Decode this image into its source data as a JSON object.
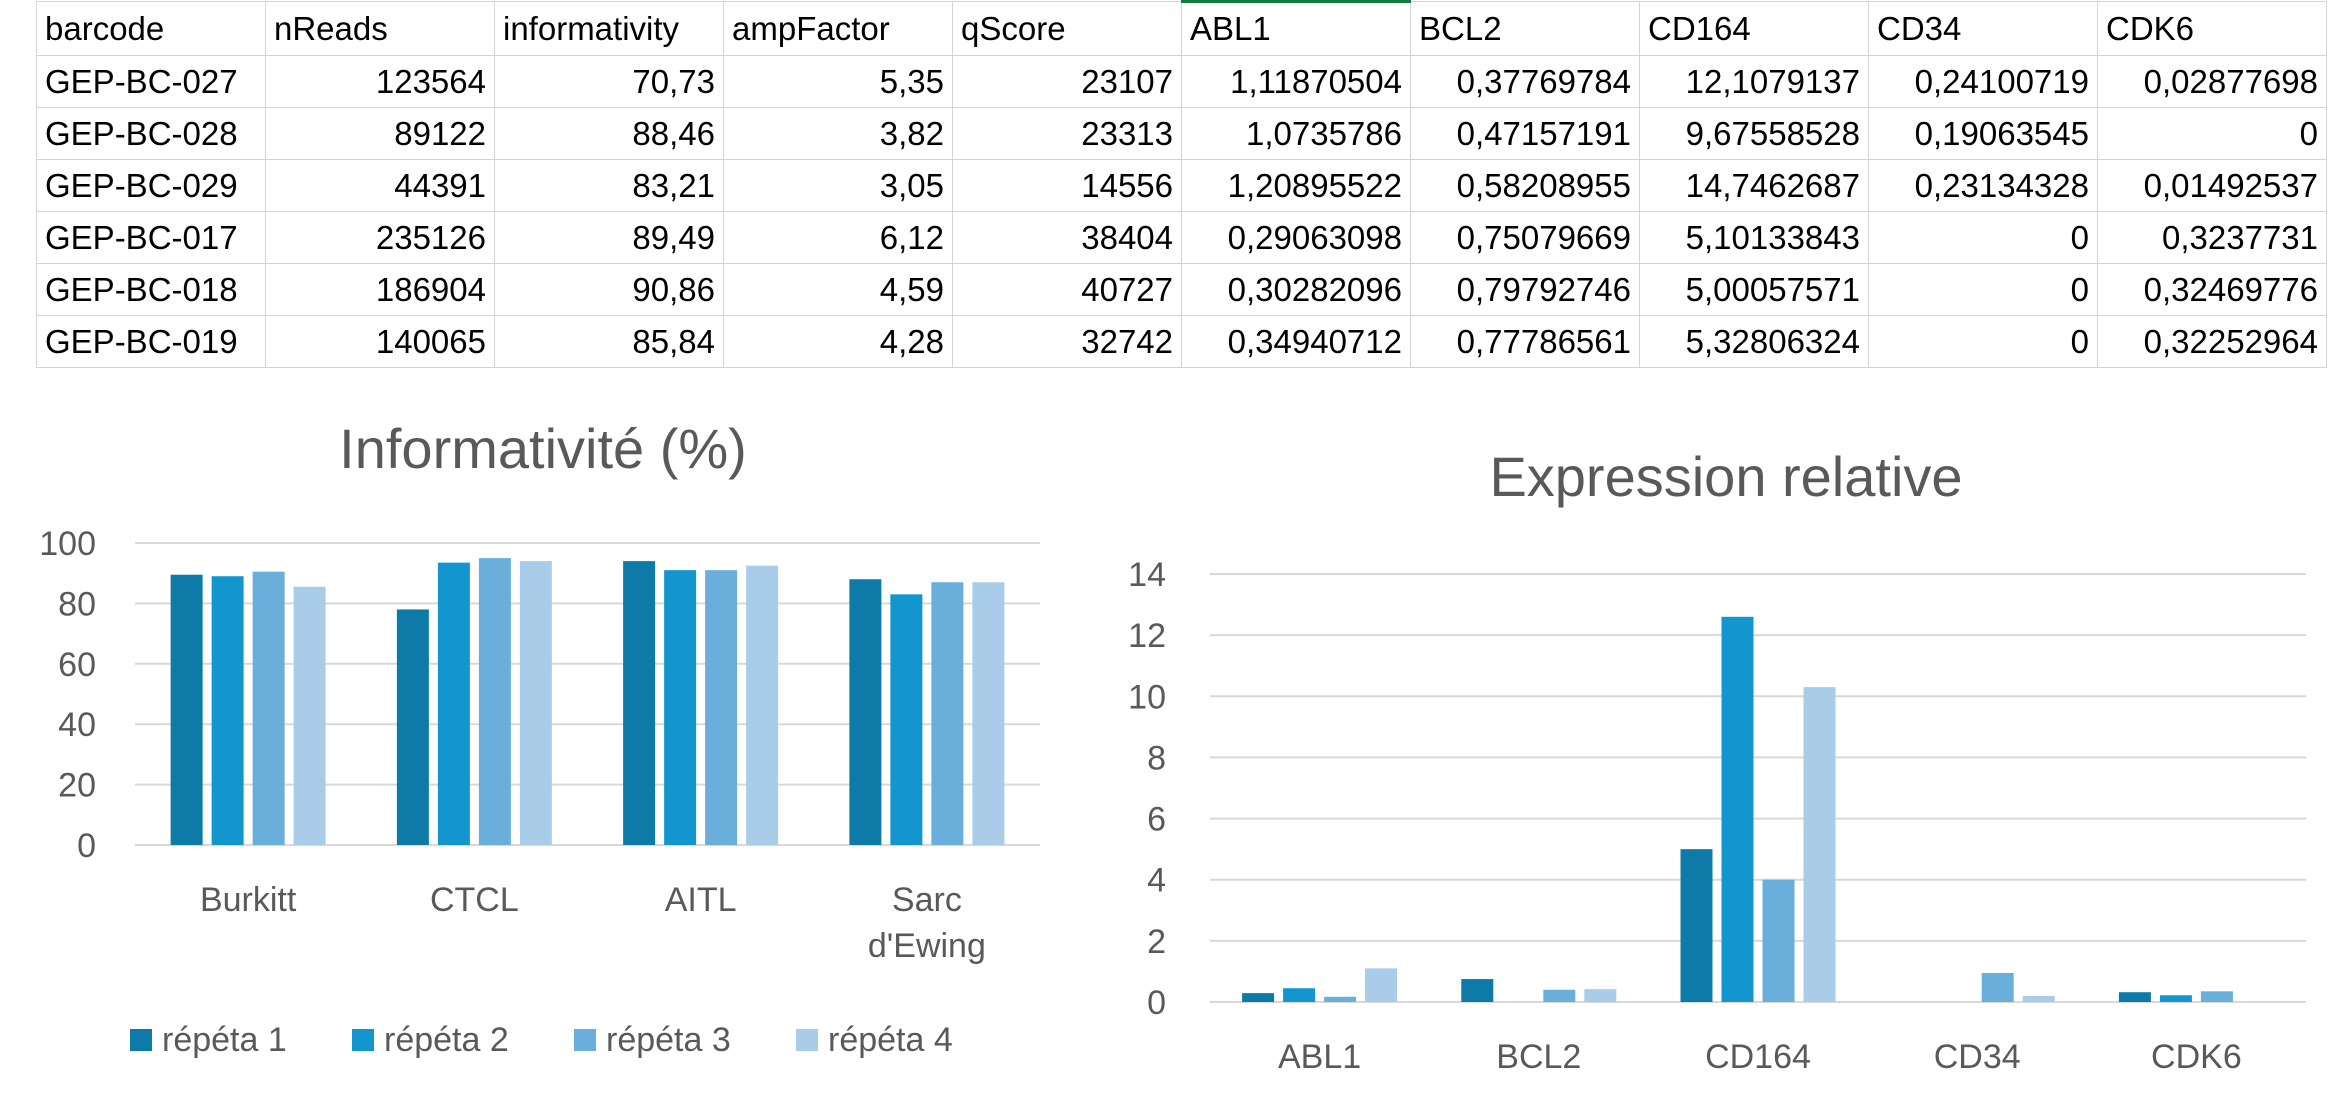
{
  "sheet": {
    "headers": [
      "barcode",
      "nReads",
      "informativity",
      "ampFactor",
      "qScore",
      "ABL1",
      "BCL2",
      "CD164",
      "CD34",
      "CDK6"
    ],
    "rows": [
      [
        "GEP-BC-027",
        "123564",
        "70,73",
        "5,35",
        "23107",
        "1,11870504",
        "0,37769784",
        "12,1079137",
        "0,24100719",
        "0,02877698"
      ],
      [
        "GEP-BC-028",
        "89122",
        "88,46",
        "3,82",
        "23313",
        "1,0735786",
        "0,47157191",
        "9,67558528",
        "0,19063545",
        "0"
      ],
      [
        "GEP-BC-029",
        "44391",
        "83,21",
        "3,05",
        "14556",
        "1,20895522",
        "0,58208955",
        "14,7462687",
        "0,23134328",
        "0,01492537"
      ],
      [
        "GEP-BC-017",
        "235126",
        "89,49",
        "6,12",
        "38404",
        "0,29063098",
        "0,75079669",
        "5,10133843",
        "0",
        "0,3237731"
      ],
      [
        "GEP-BC-018",
        "186904",
        "90,86",
        "4,59",
        "40727",
        "0,30282096",
        "0,79792746",
        "5,00057571",
        "0",
        "0,32469776"
      ],
      [
        "GEP-BC-019",
        "140065",
        "85,84",
        "4,28",
        "32742",
        "0,34940712",
        "0,77786561",
        "5,32806324",
        "0",
        "0,32252964"
      ]
    ]
  },
  "colors": {
    "series": [
      "#0e7aa8",
      "#1296cd",
      "#6aafdb",
      "#a9cde9"
    ],
    "grid": "#d9d9d9",
    "text": "#595959",
    "active_cell": "#107c41"
  },
  "chart_data": [
    {
      "type": "bar",
      "title": "Informativité (%)",
      "categories": [
        "Burkitt",
        "CTCL",
        "AITL",
        "Sarc d'Ewing"
      ],
      "ylim": [
        0,
        100
      ],
      "yticks": [
        0,
        20,
        40,
        60,
        80,
        100
      ],
      "grid": true,
      "legend": "bottom",
      "series": [
        {
          "name": "répéta 1",
          "values": [
            89.5,
            78,
            94,
            88
          ]
        },
        {
          "name": "répéta 2",
          "values": [
            89,
            93.5,
            91,
            83
          ]
        },
        {
          "name": "répéta 3",
          "values": [
            90.5,
            95,
            91,
            87
          ]
        },
        {
          "name": "répéta 4",
          "values": [
            85.5,
            94,
            92.5,
            87
          ]
        }
      ]
    },
    {
      "type": "bar",
      "title": "Expression relative",
      "categories": [
        "ABL1",
        "BCL2",
        "CD164",
        "CD34",
        "CDK6"
      ],
      "ylim": [
        0,
        14
      ],
      "yticks": [
        0,
        2,
        4,
        6,
        8,
        10,
        12,
        14
      ],
      "grid": true,
      "series": [
        {
          "values": [
            0.29,
            0.75,
            5.0,
            0,
            0.32
          ]
        },
        {
          "values": [
            0.45,
            0,
            12.6,
            0,
            0.22
          ]
        },
        {
          "values": [
            0.17,
            0.4,
            4.0,
            0.95,
            0.35
          ]
        },
        {
          "values": [
            1.1,
            0.42,
            10.3,
            0.2,
            0
          ]
        }
      ]
    }
  ]
}
